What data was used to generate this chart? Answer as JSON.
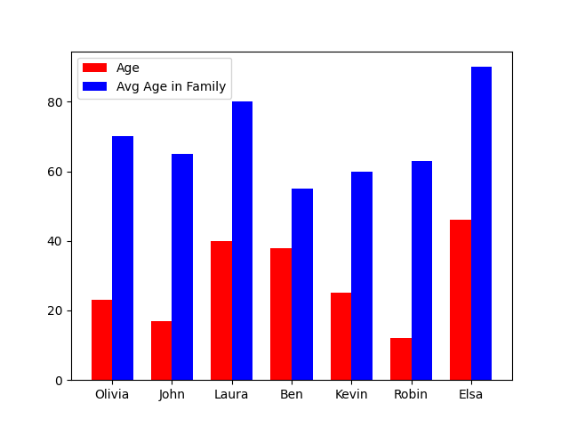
{
  "categories": [
    "Olivia",
    "John",
    "Laura",
    "Ben",
    "Kevin",
    "Robin",
    "Elsa"
  ],
  "age": [
    23,
    17,
    40,
    38,
    25,
    12,
    46
  ],
  "avg_age_family": [
    70,
    65,
    80,
    55,
    60,
    63,
    90
  ],
  "age_color": "red",
  "avg_color": "blue",
  "age_label": "Age",
  "avg_label": "Avg Age in Family",
  "bar_width": 0.35
}
